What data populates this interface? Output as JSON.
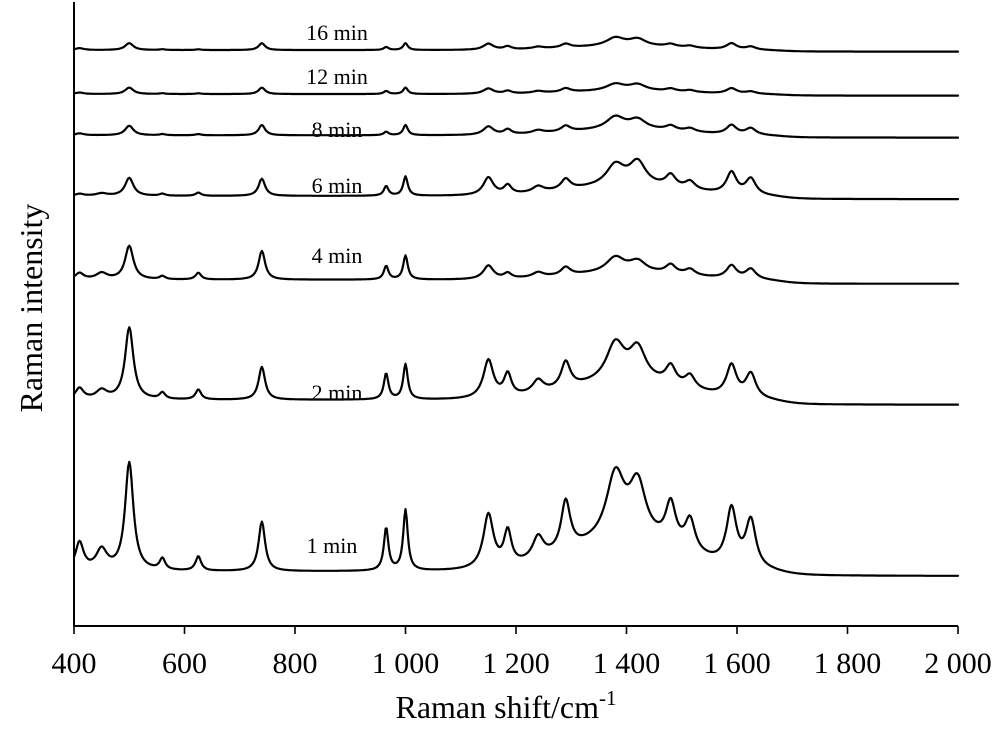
{
  "chart_data": {
    "type": "line",
    "title": "",
    "xlabel": "Raman shift/cm",
    "xlabel_superscript": "-1",
    "ylabel": "Raman intensity",
    "xlim": [
      400,
      2000
    ],
    "x_ticks": [
      {
        "value": 400,
        "label": "400"
      },
      {
        "value": 600,
        "label": "600"
      },
      {
        "value": 800,
        "label": "800"
      },
      {
        "value": 1000,
        "label": "1 000"
      },
      {
        "value": 1200,
        "label": "1 200"
      },
      {
        "value": 1400,
        "label": "1 400"
      },
      {
        "value": 1600,
        "label": "1 600"
      },
      {
        "value": 1800,
        "label": "1 800"
      },
      {
        "value": 2000,
        "label": "2 000"
      }
    ],
    "y_ticks_shown": false,
    "grid": false,
    "legend": "labels next to each trace",
    "line_color": "#000000",
    "peaks_cm": [
      410,
      450,
      500,
      560,
      625,
      740,
      965,
      1000,
      1150,
      1185,
      1240,
      1290,
      1380,
      1420,
      1480,
      1515,
      1590,
      1625
    ],
    "series": [
      {
        "name": "16 min",
        "baseline": [
          0.01,
          0.04
        ],
        "peak_heights": [
          0.05,
          0.0,
          0.18,
          0.02,
          0.02,
          0.18,
          0.08,
          0.18,
          0.16,
          0.08,
          0.05,
          0.1,
          0.22,
          0.18,
          0.07,
          0.05,
          0.16,
          0.08
        ]
      },
      {
        "name": "12 min",
        "baseline": [
          0.01,
          0.04
        ],
        "peak_heights": [
          0.04,
          0.0,
          0.17,
          0.02,
          0.02,
          0.17,
          0.08,
          0.17,
          0.14,
          0.07,
          0.05,
          0.1,
          0.18,
          0.16,
          0.07,
          0.05,
          0.14,
          0.06
        ]
      },
      {
        "name": "8 min",
        "baseline": [
          0.01,
          0.06
        ],
        "peak_heights": [
          0.05,
          0.0,
          0.25,
          0.03,
          0.03,
          0.27,
          0.09,
          0.27,
          0.22,
          0.13,
          0.08,
          0.15,
          0.33,
          0.25,
          0.12,
          0.09,
          0.24,
          0.17
        ]
      },
      {
        "name": "6 min",
        "baseline": [
          0.02,
          0.08
        ],
        "peak_heights": [
          0.05,
          0.06,
          0.45,
          0.05,
          0.08,
          0.43,
          0.24,
          0.48,
          0.44,
          0.22,
          0.15,
          0.26,
          0.52,
          0.58,
          0.3,
          0.2,
          0.54,
          0.4
        ]
      },
      {
        "name": "4 min",
        "baseline": [
          0.03,
          0.1
        ],
        "peak_heights": [
          0.16,
          0.16,
          0.84,
          0.08,
          0.17,
          0.72,
          0.34,
          0.6,
          0.34,
          0.13,
          0.12,
          0.2,
          0.38,
          0.27,
          0.22,
          0.15,
          0.32,
          0.25
        ]
      },
      {
        "name": "2 min",
        "baseline": [
          0.03,
          0.12
        ],
        "peak_heights": [
          0.28,
          0.22,
          1.8,
          0.16,
          0.25,
          0.82,
          0.65,
          0.88,
          0.95,
          0.55,
          0.32,
          0.65,
          0.95,
          0.8,
          0.45,
          0.32,
          0.78,
          0.6
        ]
      },
      {
        "name": "1 min",
        "baseline": [
          0.02,
          0.1
        ],
        "peak_heights": [
          0.62,
          0.45,
          2.4,
          0.25,
          0.32,
          1.1,
          0.95,
          1.35,
          1.2,
          0.75,
          0.5,
          1.1,
          1.45,
          1.2,
          0.9,
          0.7,
          1.25,
          1.05
        ]
      }
    ]
  }
}
